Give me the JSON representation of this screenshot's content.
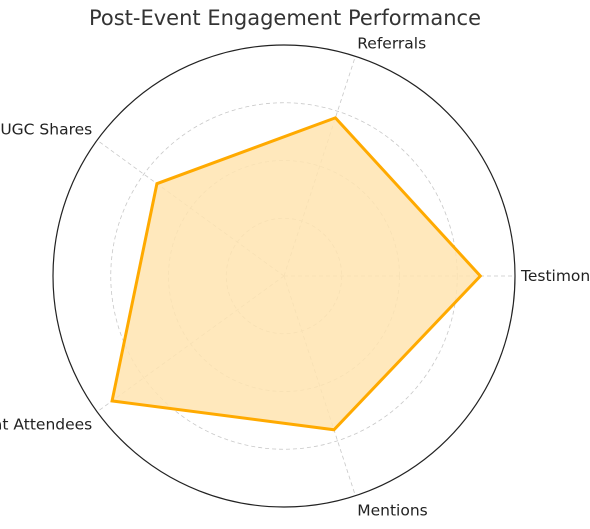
{
  "chart_data": {
    "type": "radar",
    "title": "Post-Event Engagement Performance",
    "categories": [
      "Testimonials",
      "Referrals",
      "UGC Shares",
      "Repeat Attendees",
      "Mentions"
    ],
    "series": [
      {
        "values": [
          85,
          72,
          68,
          92,
          70
        ]
      }
    ],
    "rlim": [
      0,
      100
    ],
    "grid": true,
    "colors": {
      "line": "#FFAA00",
      "fill": "#FFE4B0",
      "grid": "#C8C8C8",
      "frame": "#222222"
    }
  }
}
